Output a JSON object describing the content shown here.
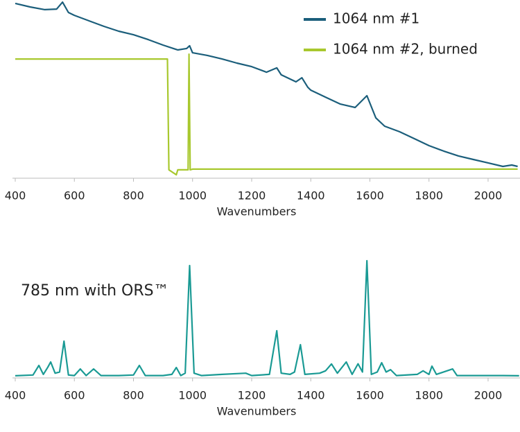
{
  "chart_data": [
    {
      "type": "line",
      "x_label": "Wavenumbers",
      "legend": "upper right",
      "xlim": [
        400,
        2108
      ],
      "ylim": [
        0,
        100
      ],
      "xticks": [
        400,
        600,
        800,
        1000,
        1200,
        1400,
        1600,
        1800,
        2000
      ],
      "series": [
        {
          "name": "1064 nm #1",
          "color": "#1b5e7b",
          "x": [
            400,
            450,
            500,
            540,
            560,
            580,
            600,
            650,
            700,
            750,
            800,
            850,
            900,
            950,
            980,
            990,
            1000,
            1050,
            1100,
            1150,
            1200,
            1250,
            1285,
            1300,
            1350,
            1370,
            1390,
            1400,
            1450,
            1500,
            1550,
            1590,
            1620,
            1650,
            1700,
            1750,
            1800,
            1850,
            1900,
            1950,
            2000,
            2050,
            2080,
            2100
          ],
          "values": [
            98.1,
            96.1,
            94.6,
            94.9,
            98.8,
            93.0,
            91.4,
            88.3,
            85.2,
            82.5,
            80.5,
            77.8,
            74.7,
            72.0,
            72.8,
            74.3,
            70.4,
            68.9,
            66.9,
            64.6,
            62.6,
            59.5,
            61.9,
            58.0,
            54.1,
            56.4,
            51.0,
            49.4,
            45.5,
            41.6,
            39.7,
            46.3,
            33.9,
            29.2,
            26.1,
            22.2,
            18.3,
            15.2,
            12.5,
            10.5,
            8.6,
            6.6,
            7.4,
            6.6
          ]
        },
        {
          "name": "1064 nm #2, burned",
          "color": "#a8c82e",
          "x": [
            400,
            915,
            920,
            945,
            950,
            980,
            985,
            988,
            992,
            1000,
            2100
          ],
          "values": [
            66.9,
            66.9,
            4.7,
            1.9,
            4.7,
            4.7,
            4.7,
            69.6,
            4.7,
            5.1,
            5.1
          ]
        }
      ]
    },
    {
      "type": "line",
      "title": "785 nm with ORS™",
      "x_label": "Wavenumbers",
      "xlim": [
        400,
        2108
      ],
      "ylim": [
        0,
        100
      ],
      "xticks": [
        400,
        600,
        800,
        1000,
        1200,
        1400,
        1600,
        1800,
        2000
      ],
      "series": [
        {
          "color": "#1a9a94",
          "x": [
            400,
            460,
            480,
            495,
            510,
            520,
            535,
            550,
            565,
            580,
            600,
            620,
            640,
            665,
            690,
            750,
            800,
            820,
            840,
            900,
            930,
            945,
            960,
            975,
            990,
            1005,
            1030,
            1100,
            1180,
            1200,
            1260,
            1285,
            1300,
            1330,
            1345,
            1365,
            1380,
            1430,
            1450,
            1470,
            1490,
            1520,
            1540,
            1560,
            1575,
            1590,
            1605,
            1625,
            1640,
            1655,
            1670,
            1690,
            1760,
            1780,
            1800,
            1810,
            1825,
            1880,
            1895,
            1950,
            2050,
            2105
          ],
          "values": [
            1.8,
            2.5,
            10.6,
            3,
            9,
            13.5,
            4,
            5,
            31.2,
            2.5,
            2,
            7.6,
            2,
            7.6,
            2,
            2,
            2.5,
            10.6,
            2,
            2,
            3,
            8.8,
            2,
            4,
            95.3,
            4,
            2,
            3,
            4,
            2,
            3,
            40,
            4,
            3,
            5,
            28.2,
            3,
            4,
            6,
            11.8,
            4,
            13.5,
            3,
            12,
            5,
            99.4,
            3,
            5,
            12.9,
            5,
            7,
            2,
            3,
            6,
            3,
            10,
            3,
            7.6,
            2,
            2,
            2,
            1.8
          ]
        }
      ]
    }
  ]
}
